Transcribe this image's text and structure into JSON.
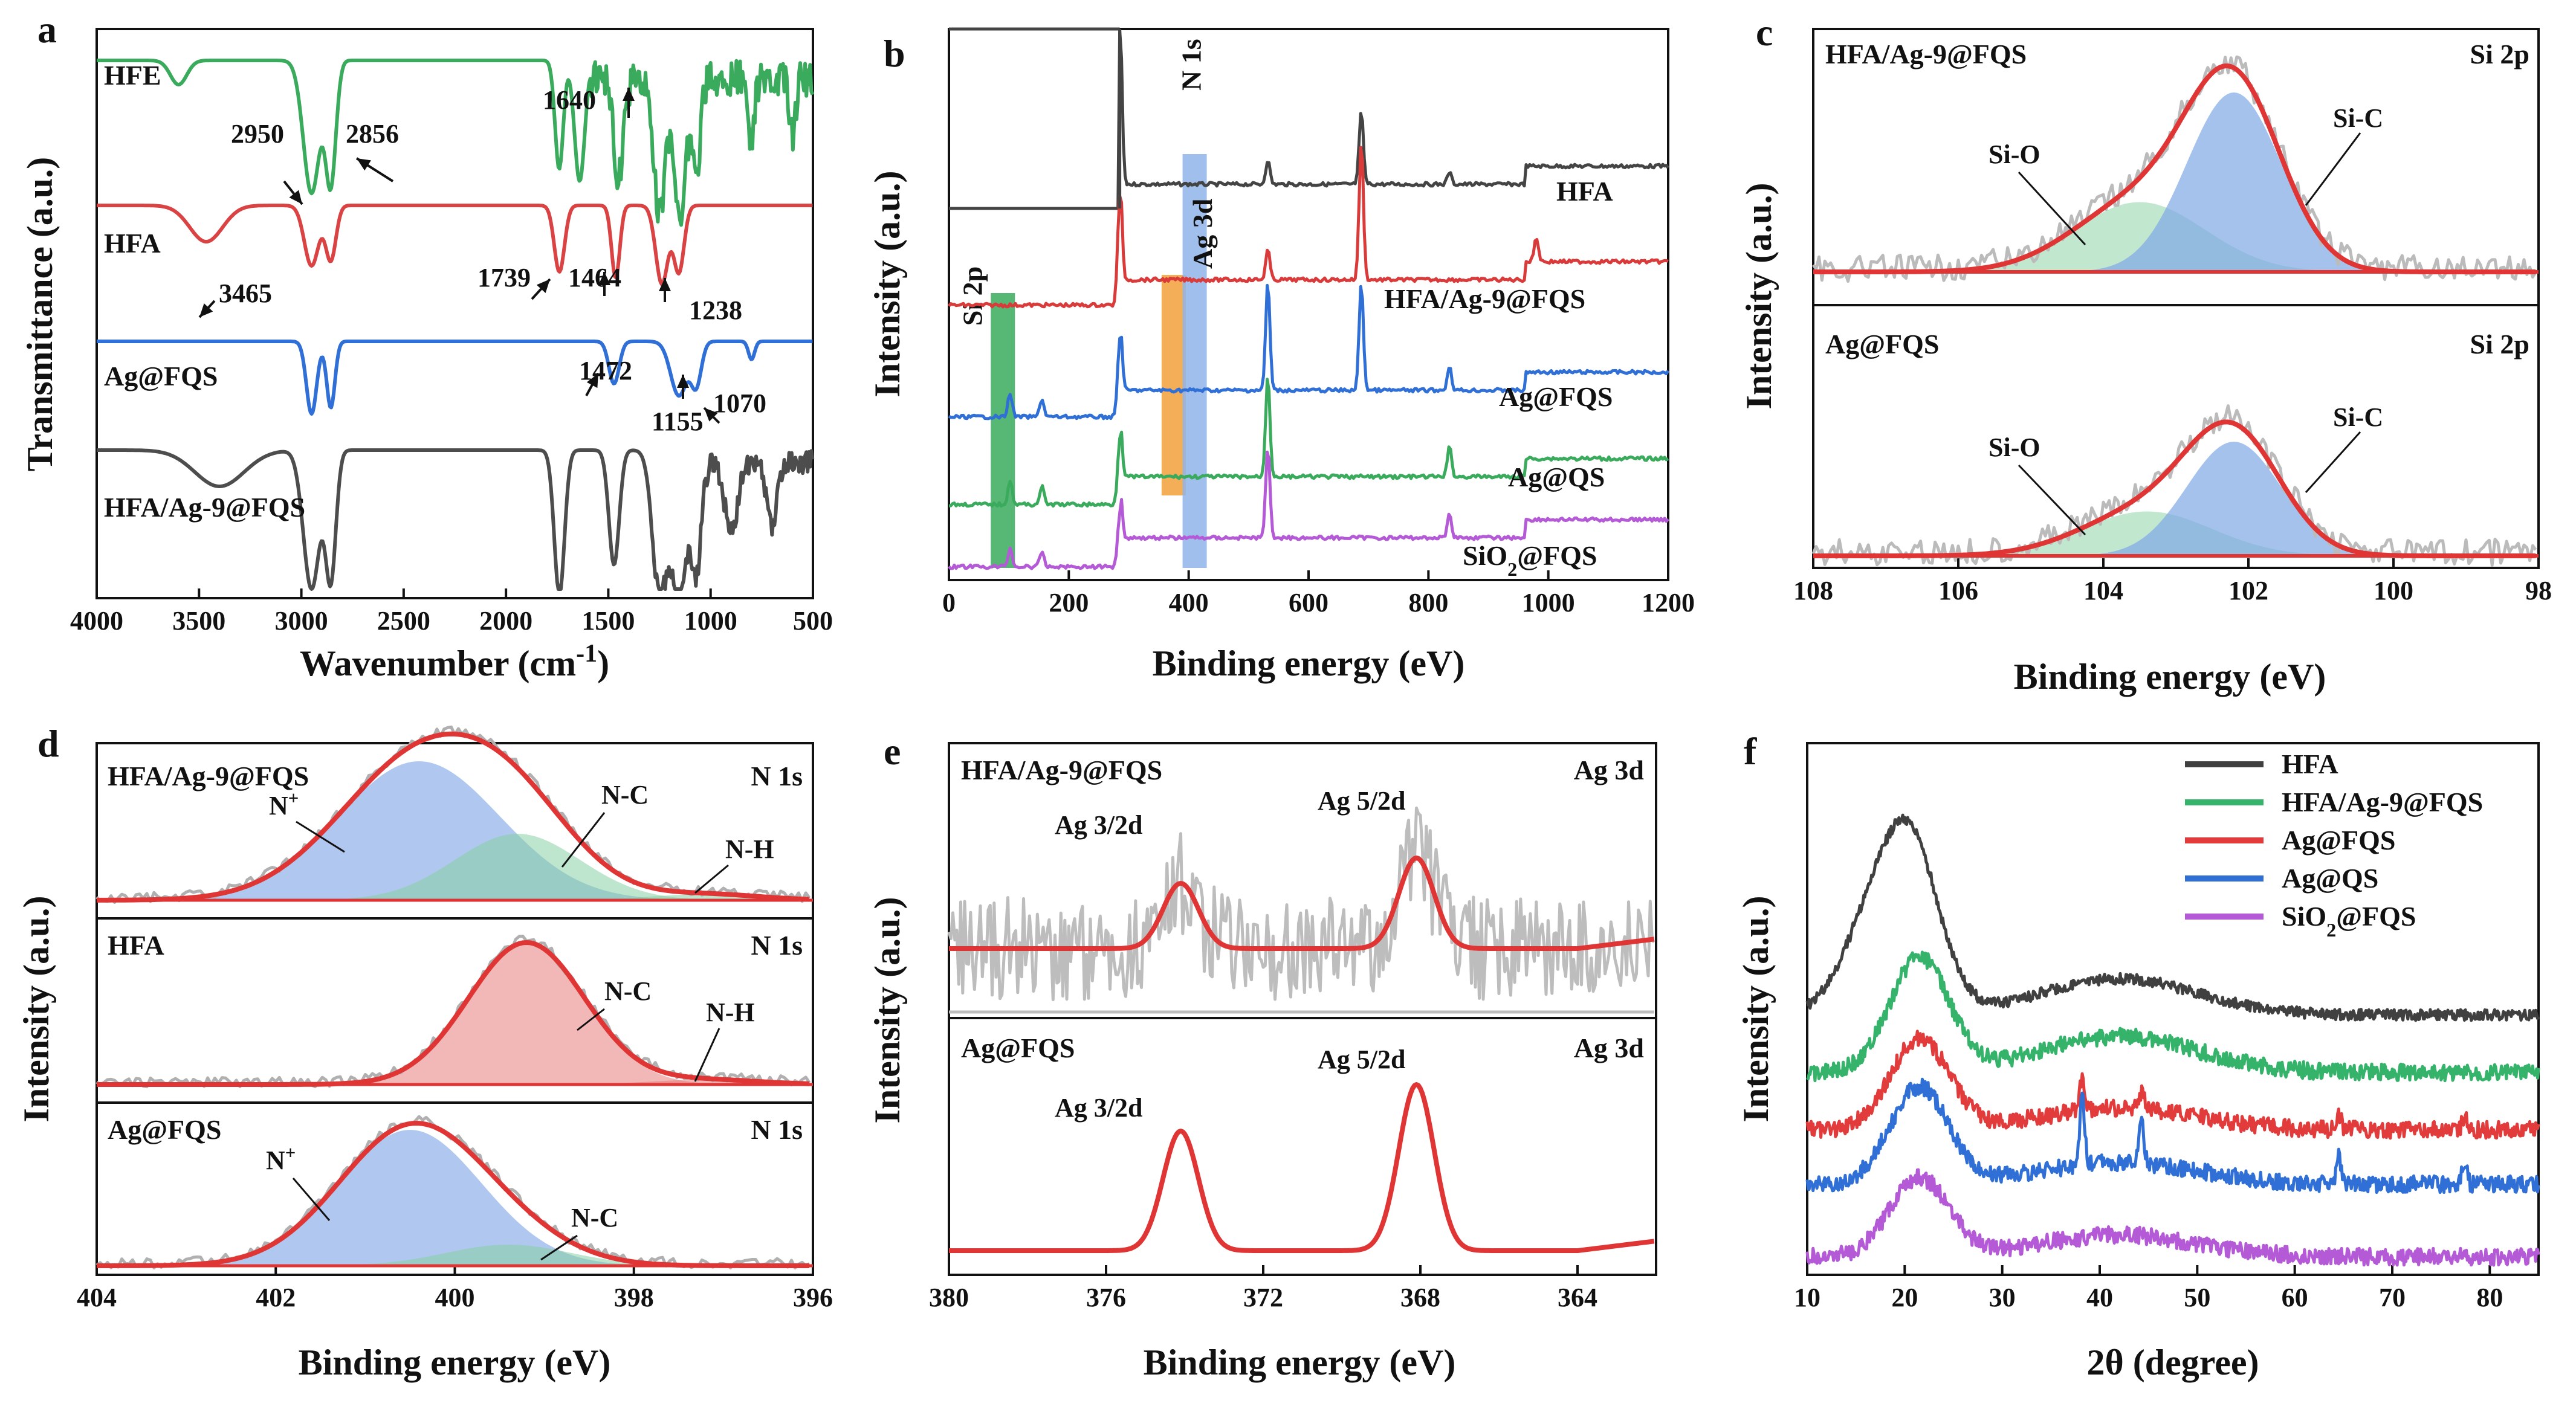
{
  "chart_data": [
    {
      "panel": "a",
      "type": "line",
      "xlabel": "Wavenumber (cm",
      "xlabel_sup": "-1",
      "xlabel_tail": ")",
      "ylabel": "Transmittance (a.u.)",
      "xlim": [
        4000,
        500
      ],
      "xticks": [
        4000,
        3500,
        3000,
        2500,
        2000,
        1500,
        1000,
        500
      ],
      "series": [
        {
          "name": "HFE",
          "color": "#3aaa5c",
          "offset": 0
        },
        {
          "name": "HFA",
          "color": "#d94343",
          "offset": 1
        },
        {
          "name": "Ag@FQS",
          "color": "#2f6fd6",
          "offset": 2
        },
        {
          "name": "HFA/Ag-9@FQS",
          "color": "#4d4d4d",
          "offset": 3
        }
      ],
      "peaks": [
        2950,
        2856,
        1640,
        3465,
        1739,
        1464,
        1238,
        1472,
        1155,
        1070
      ],
      "annotations": [
        "2950",
        "2856",
        "1640",
        "3465",
        "1739",
        "1464",
        "1238",
        "1472",
        "1155",
        "1070"
      ]
    },
    {
      "panel": "b",
      "type": "line",
      "xlabel": "Binding energy (eV)",
      "ylabel": "Intensity (a.u.)",
      "xlim": [
        0,
        1200
      ],
      "xticks": [
        0,
        200,
        400,
        600,
        800,
        1000,
        1200
      ],
      "series": [
        {
          "name": "HFA",
          "color": "#444444"
        },
        {
          "name": "HFA/Ag-9@FQS",
          "color": "#d93b3b"
        },
        {
          "name": "Ag@FQS",
          "color": "#2f6fd6"
        },
        {
          "name": "Ag@QS",
          "color": "#3aaa5c"
        },
        {
          "name": "SiO2@FQS",
          "color": "#b45ad6"
        }
      ],
      "series_labels": [
        "HFA",
        "HFA/Ag-9@FQS",
        "Ag@FQS",
        "Ag@QS",
        "SiO",
        "2",
        "@FQS"
      ],
      "bands": [
        {
          "label": "Si 2p",
          "center": 102,
          "color": "#3aaa5c"
        },
        {
          "label": "Ag 3d",
          "center": 368,
          "color": "#f2a03a"
        },
        {
          "label": "N 1s",
          "center": 400,
          "color": "#8fb4ea"
        }
      ]
    },
    {
      "panel": "c",
      "type": "line",
      "xlabel": "Binding energy (eV)",
      "ylabel": "Intensity (a.u.)",
      "xlim": [
        108,
        98
      ],
      "xticks": [
        108,
        106,
        104,
        102,
        100,
        98
      ],
      "subplots": [
        {
          "sample": "HFA/Ag-9@FQS",
          "core": "Si 2p",
          "components": [
            {
              "name": "Si-O",
              "center": 103.5,
              "color": "#8fd4a8"
            },
            {
              "name": "Si-C",
              "center": 102.2,
              "color": "#7fa8e6"
            }
          ]
        },
        {
          "sample": "Ag@FQS",
          "core": "Si 2p",
          "components": [
            {
              "name": "Si-O",
              "center": 103.4,
              "color": "#8fd4a8"
            },
            {
              "name": "Si-C",
              "center": 102.2,
              "color": "#7fa8e6"
            }
          ]
        }
      ]
    },
    {
      "panel": "d",
      "type": "line",
      "xlabel": "Binding energy (eV)",
      "ylabel": "Intensity (a.u.)",
      "xlim": [
        404,
        396
      ],
      "xticks": [
        404,
        402,
        400,
        398,
        396
      ],
      "subplots": [
        {
          "sample": "HFA/Ag-9@FQS",
          "core": "N 1s",
          "components": [
            {
              "name": "N",
              "sup": "+",
              "center": 400.4
            },
            {
              "name": "N-C",
              "center": 399.2
            },
            {
              "name": "N-H",
              "center": 397.2
            }
          ]
        },
        {
          "sample": "HFA",
          "core": "N 1s",
          "components": [
            {
              "name": "N-C",
              "center": 399.2
            },
            {
              "name": "N-H",
              "center": 397.2
            }
          ]
        },
        {
          "sample": "Ag@FQS",
          "core": "N 1s",
          "components": [
            {
              "name": "N",
              "sup": "+",
              "center": 400.5
            },
            {
              "name": "N-C",
              "center": 399.2
            }
          ]
        }
      ]
    },
    {
      "panel": "e",
      "type": "line",
      "xlabel": "Binding energy (eV)",
      "ylabel": "Intensity (a.u.)",
      "xlim": [
        380,
        362
      ],
      "xticks": [
        380,
        376,
        372,
        368,
        364
      ],
      "subplots": [
        {
          "sample": "HFA/Ag-9@FQS",
          "core": "Ag 3d",
          "peaks": [
            {
              "name": "Ag 3/2d",
              "center": 374.1
            },
            {
              "name": "Ag 5/2d",
              "center": 368.1
            }
          ]
        },
        {
          "sample": "Ag@FQS",
          "core": "Ag 3d",
          "peaks": [
            {
              "name": "Ag 3/2d",
              "center": 374.1
            },
            {
              "name": "Ag 5/2d",
              "center": 368.1
            }
          ]
        }
      ]
    },
    {
      "panel": "f",
      "type": "line",
      "xlabel": "2θ (degree)",
      "ylabel": "Intensity (a.u.)",
      "xlim": [
        10,
        85
      ],
      "xticks": [
        10,
        20,
        30,
        40,
        50,
        60,
        70,
        80
      ],
      "series": [
        {
          "name": "HFA",
          "color": "#404040"
        },
        {
          "name": "HFA/Ag-9@FQS",
          "color": "#35b36a"
        },
        {
          "name": "Ag@FQS",
          "color": "#e23b3b"
        },
        {
          "name": "Ag@QS",
          "color": "#2f6fd6"
        },
        {
          "name": "SiO2@FQS",
          "color": "#b45ad6"
        }
      ],
      "legend": [
        "HFA",
        "HFA/Ag-9@FQS",
        "Ag@FQS",
        "Ag@QS",
        "SiO",
        "2",
        "@FQS"
      ],
      "legend_position": "top-right"
    }
  ]
}
